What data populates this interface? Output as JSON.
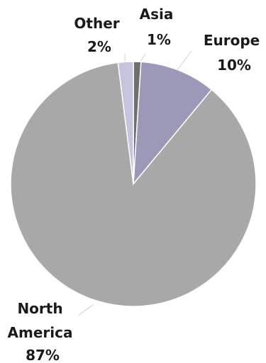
{
  "chart_data": {
    "type": "pie",
    "title": "",
    "start_angle_deg": 0,
    "direction": "clockwise",
    "slices": [
      {
        "label_lines": [
          "Asia",
          "1%"
        ],
        "value": 1,
        "color": "#6f6f70"
      },
      {
        "label_lines": [
          "Europe",
          "10%"
        ],
        "value": 10,
        "color": "#9b98b8"
      },
      {
        "label_lines": [
          "North",
          "America",
          "87%"
        ],
        "value": 87,
        "color": "#a8a8a8"
      },
      {
        "label_lines": [
          "Other",
          "2%"
        ],
        "value": 2,
        "color": "#c4c4dc"
      }
    ]
  }
}
